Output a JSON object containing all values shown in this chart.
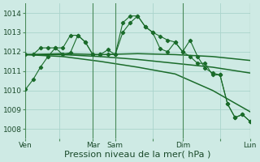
{
  "bg_color": "#ceeae4",
  "grid_color": "#aad4cc",
  "line_color": "#1a6b2a",
  "vline_color": "#4a8a5a",
  "ylim": [
    1007.5,
    1014.5
  ],
  "yticks": [
    1008,
    1009,
    1010,
    1011,
    1012,
    1013,
    1014
  ],
  "xlabel": "Pression niveau de la mer( hPa )",
  "xlabel_fontsize": 8,
  "tick_fontsize": 6.5,
  "xtick_labels": [
    "Ven",
    "",
    "Mar",
    "Sam",
    "",
    "Dim",
    "",
    "Lun"
  ],
  "xtick_positions": [
    0,
    4.5,
    9,
    12,
    17,
    21,
    26,
    30
  ],
  "vline_positions": [
    0,
    9,
    12,
    21,
    30
  ],
  "xlim": [
    0,
    30
  ],
  "series1_x": [
    0,
    1,
    2,
    3,
    4,
    5,
    6,
    7,
    8,
    9,
    10,
    11,
    12,
    13,
    14,
    15,
    16,
    17,
    18,
    19,
    20,
    21,
    22,
    23,
    24,
    25,
    26,
    27,
    28,
    29,
    30
  ],
  "series1_y": [
    1010.05,
    1010.55,
    1011.2,
    1011.75,
    1012.2,
    1011.85,
    1011.95,
    1012.85,
    1012.5,
    1011.85,
    1011.85,
    1012.1,
    1011.85,
    1013.0,
    1013.5,
    1013.85,
    1013.3,
    1013.0,
    1012.8,
    1012.6,
    1012.5,
    1012.0,
    1012.6,
    1011.75,
    1011.15,
    1010.9,
    1010.8,
    1009.3,
    1008.6,
    1008.75,
    1008.4
  ],
  "series2_x": [
    0,
    1,
    2,
    3,
    4,
    5,
    6,
    7,
    8,
    9,
    10,
    11,
    12,
    13,
    14,
    15,
    16,
    17,
    18,
    19,
    20,
    21,
    22,
    23,
    24,
    25,
    26,
    27,
    28,
    29,
    30
  ],
  "series2_y": [
    1011.85,
    1011.85,
    1012.2,
    1012.2,
    1012.2,
    1012.2,
    1012.85,
    1012.85,
    1012.5,
    1011.85,
    1011.85,
    1011.85,
    1011.85,
    1013.5,
    1013.85,
    1013.85,
    1013.3,
    1013.0,
    1012.15,
    1012.0,
    1012.5,
    1012.0,
    1011.75,
    1011.4,
    1011.4,
    1010.8,
    1010.8,
    1009.3,
    1008.6,
    1008.75,
    1008.4
  ],
  "series3_x": [
    0,
    5,
    10,
    15,
    20,
    25,
    30
  ],
  "series3_y": [
    1011.85,
    1011.9,
    1011.85,
    1011.9,
    1011.85,
    1011.75,
    1011.55
  ],
  "series4_x": [
    0,
    5,
    10,
    15,
    20,
    25,
    30
  ],
  "series4_y": [
    1011.85,
    1011.85,
    1011.75,
    1011.6,
    1011.4,
    1011.2,
    1010.9
  ],
  "series5_x": [
    0,
    5,
    10,
    15,
    20,
    25,
    30
  ],
  "series5_y": [
    1011.85,
    1011.75,
    1011.5,
    1011.2,
    1010.85,
    1010.0,
    1008.9
  ]
}
